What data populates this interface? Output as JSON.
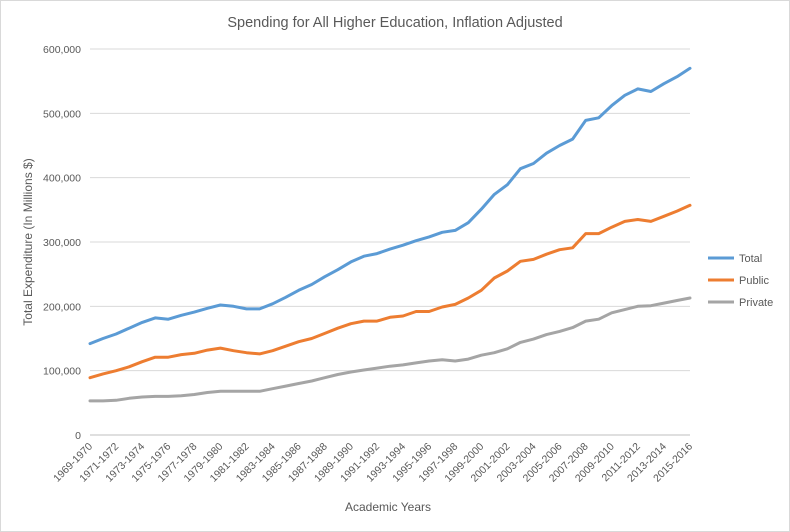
{
  "chart_data": {
    "type": "line",
    "title": "Spending for All Higher Education, Inflation Adjusted",
    "xlabel": "Academic Years",
    "ylabel": "Total Expenditure (In Millions $)",
    "ylim": [
      0,
      600000
    ],
    "yticks": [
      "0",
      "100,000",
      "200,000",
      "300,000",
      "400,000",
      "500,000",
      "600,000"
    ],
    "grid": true,
    "legend_position": "right",
    "categories": [
      "1969-1970",
      "1970-1971",
      "1971-1972",
      "1972-1973",
      "1973-1974",
      "1974-1975",
      "1975-1976",
      "1976-1977",
      "1977-1978",
      "1978-1979",
      "1979-1980",
      "1980-1981",
      "1981-1982",
      "1982-1983",
      "1983-1984",
      "1984-1985",
      "1985-1986",
      "1986-1987",
      "1987-1988",
      "1988-1989",
      "1989-1990",
      "1990-1991",
      "1991-1992",
      "1992-1993",
      "1993-1994",
      "1994-1995",
      "1995-1996",
      "1996-1997",
      "1997-1998",
      "1998-1999",
      "1999-2000",
      "2000-2001",
      "2001-2002",
      "2002-2003",
      "2003-2004",
      "2004-2005",
      "2005-2006",
      "2006-2007",
      "2007-2008",
      "2008-2009",
      "2009-2010",
      "2010-2011",
      "2011-2012",
      "2012-2013",
      "2013-2014",
      "2014-2015",
      "2015-2016"
    ],
    "xtick_labels": [
      "1969-1970",
      "1971-1972",
      "1973-1974",
      "1975-1976",
      "1977-1978",
      "1979-1980",
      "1981-1982",
      "1983-1984",
      "1985-1986",
      "1987-1988",
      "1989-1990",
      "1991-1992",
      "1993-1994",
      "1995-1996",
      "1997-1998",
      "1999-2000",
      "2001-2002",
      "2003-2004",
      "2005-2006",
      "2007-2008",
      "2009-2010",
      "2011-2012",
      "2013-2014",
      "2015-2016"
    ],
    "series": [
      {
        "name": "Total",
        "color": "#5b9bd5",
        "values": [
          142000,
          150000,
          157000,
          166000,
          175000,
          182000,
          180000,
          186000,
          191000,
          197000,
          202000,
          200000,
          196000,
          196000,
          204000,
          214000,
          225000,
          234000,
          246000,
          257000,
          269000,
          278000,
          282000,
          289000,
          295000,
          302000,
          308000,
          315000,
          318000,
          330000,
          351000,
          374000,
          389000,
          414000,
          422000,
          438000,
          450000,
          460000,
          489000,
          493000,
          512000,
          528000,
          538000,
          534000,
          546000,
          557000,
          570000
        ]
      },
      {
        "name": "Public",
        "color": "#ed7d31",
        "values": [
          89000,
          95000,
          100000,
          106000,
          114000,
          121000,
          121000,
          125000,
          127000,
          132000,
          135000,
          131000,
          128000,
          126000,
          131000,
          138000,
          145000,
          150000,
          158000,
          166000,
          173000,
          177000,
          177000,
          183000,
          185000,
          192000,
          192000,
          199000,
          203000,
          213000,
          225000,
          244000,
          255000,
          270000,
          273000,
          281000,
          288000,
          291000,
          313000,
          313000,
          323000,
          332000,
          335000,
          332000,
          340000,
          348000,
          357000
        ]
      },
      {
        "name": "Private",
        "color": "#a5a5a5",
        "values": [
          53000,
          53000,
          54000,
          57000,
          59000,
          60000,
          60000,
          61000,
          63000,
          66000,
          68000,
          68000,
          68000,
          68000,
          72000,
          76000,
          80000,
          84000,
          89000,
          94000,
          98000,
          101000,
          104000,
          107000,
          109000,
          112000,
          115000,
          117000,
          115000,
          118000,
          124000,
          128000,
          134000,
          144000,
          149000,
          156000,
          161000,
          167000,
          177000,
          180000,
          190000,
          195000,
          200000,
          201000,
          205000,
          209000,
          213000
        ]
      }
    ]
  }
}
